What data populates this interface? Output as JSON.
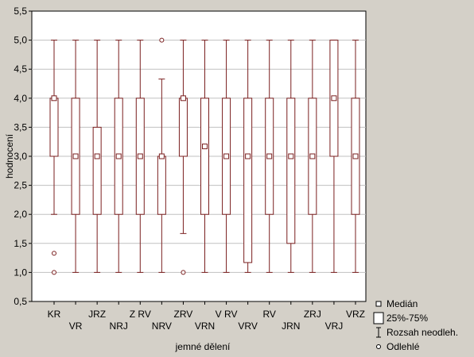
{
  "chart_data": {
    "type": "boxplot",
    "title": "",
    "xlabel": "jemné dělení",
    "ylabel": "hodnocení",
    "ylim": [
      0.5,
      5.5
    ],
    "yticks": [
      "0,5",
      "1,0",
      "1,5",
      "2,0",
      "2,5",
      "3,0",
      "3,5",
      "4,0",
      "4,5",
      "5,0",
      "5,5"
    ],
    "ytick_values": [
      0.5,
      1.0,
      1.5,
      2.0,
      2.5,
      3.0,
      3.5,
      4.0,
      4.5,
      5.0,
      5.5
    ],
    "grid": true,
    "colors": {
      "box": "#7a1f1f",
      "background": "#d4d0c8",
      "plot": "#ffffff",
      "grid": "#c0c0c0"
    },
    "categories": [
      "KR",
      "VR",
      "JRZ",
      "NRJ",
      "Z RV",
      "NRV",
      "ZRV",
      "VRN",
      "V RV",
      "VRV",
      "RV",
      "JRN",
      "ZRJ",
      "VRJ",
      "VRZ"
    ],
    "boxes": [
      {
        "name": "KR",
        "median": 4.0,
        "q1": 3.0,
        "q3": 4.0,
        "whisker_low": 2.0,
        "whisker_high": 5.0,
        "outliers": [
          1.33,
          1.0
        ]
      },
      {
        "name": "VR",
        "median": 3.0,
        "q1": 2.0,
        "q3": 4.0,
        "whisker_low": 1.0,
        "whisker_high": 5.0,
        "outliers": []
      },
      {
        "name": "JRZ",
        "median": 3.0,
        "q1": 2.0,
        "q3": 3.5,
        "whisker_low": 1.0,
        "whisker_high": 5.0,
        "outliers": []
      },
      {
        "name": "NRJ",
        "median": 3.0,
        "q1": 2.0,
        "q3": 4.0,
        "whisker_low": 1.0,
        "whisker_high": 5.0,
        "outliers": []
      },
      {
        "name": "Z RV",
        "median": 3.0,
        "q1": 2.0,
        "q3": 4.0,
        "whisker_low": 1.0,
        "whisker_high": 5.0,
        "outliers": []
      },
      {
        "name": "NRV",
        "median": 3.0,
        "q1": 2.0,
        "q3": 3.0,
        "whisker_low": 1.0,
        "whisker_high": 4.33,
        "outliers": [
          5.0
        ]
      },
      {
        "name": "ZRV",
        "median": 4.0,
        "q1": 3.0,
        "q3": 4.0,
        "whisker_low": 1.67,
        "whisker_high": 5.0,
        "outliers": [
          1.0
        ]
      },
      {
        "name": "VRN",
        "median": 3.17,
        "q1": 2.0,
        "q3": 4.0,
        "whisker_low": 1.0,
        "whisker_high": 5.0,
        "outliers": []
      },
      {
        "name": "V RV",
        "median": 3.0,
        "q1": 2.0,
        "q3": 4.0,
        "whisker_low": 1.0,
        "whisker_high": 5.0,
        "outliers": []
      },
      {
        "name": "VRV",
        "median": 3.0,
        "q1": 1.17,
        "q3": 4.0,
        "whisker_low": 1.0,
        "whisker_high": 5.0,
        "outliers": []
      },
      {
        "name": "RV",
        "median": 3.0,
        "q1": 2.0,
        "q3": 4.0,
        "whisker_low": 1.0,
        "whisker_high": 5.0,
        "outliers": []
      },
      {
        "name": "JRN",
        "median": 3.0,
        "q1": 1.5,
        "q3": 4.0,
        "whisker_low": 1.0,
        "whisker_high": 5.0,
        "outliers": []
      },
      {
        "name": "ZRJ",
        "median": 3.0,
        "q1": 2.0,
        "q3": 4.0,
        "whisker_low": 1.0,
        "whisker_high": 5.0,
        "outliers": []
      },
      {
        "name": "VRJ",
        "median": 4.0,
        "q1": 3.0,
        "q3": 5.0,
        "whisker_low": 1.0,
        "whisker_high": 5.0,
        "outliers": []
      },
      {
        "name": "VRZ",
        "median": 3.0,
        "q1": 2.0,
        "q3": 4.0,
        "whisker_low": 1.0,
        "whisker_high": 5.0,
        "outliers": []
      }
    ]
  },
  "legend": {
    "placement": "bottom-right",
    "median": "Medián",
    "box": "25%-75%",
    "range": "Rozsah neodleh.",
    "outlier": "Odlehlé"
  }
}
